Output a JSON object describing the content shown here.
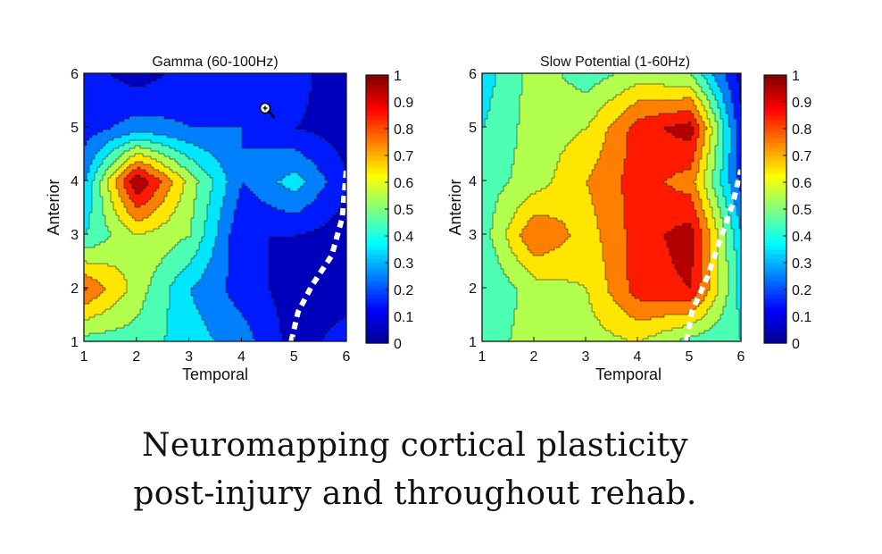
{
  "chart_data": [
    {
      "type": "heatmap",
      "title": "Gamma (60-100Hz)",
      "xlabel": "Temporal",
      "ylabel": "Anterior",
      "x": [
        1,
        2,
        3,
        4,
        5,
        6
      ],
      "y": [
        1,
        2,
        3,
        4,
        5,
        6
      ],
      "xlim": [
        1,
        6
      ],
      "ylim": [
        1,
        6
      ],
      "x_ticks": [
        "1",
        "2",
        "3",
        "4",
        "5",
        "6"
      ],
      "y_ticks": [
        "1",
        "2",
        "3",
        "4",
        "5",
        "6"
      ],
      "z": [
        [
          0.45,
          0.45,
          0.35,
          0.25,
          0.05,
          0.15
        ],
        [
          0.8,
          0.55,
          0.3,
          0.15,
          0.05,
          0.05
        ],
        [
          0.4,
          0.6,
          0.5,
          0.1,
          0.1,
          0.05
        ],
        [
          0.3,
          1.0,
          0.55,
          0.2,
          0.35,
          0.1
        ],
        [
          0.15,
          0.25,
          0.2,
          0.2,
          0.1,
          0.05
        ],
        [
          0.15,
          0.05,
          0.15,
          0.2,
          0.15,
          0.0
        ]
      ],
      "contour_levels": [
        0.1,
        0.2,
        0.3,
        0.4,
        0.5,
        0.6,
        0.7,
        0.8,
        0.9
      ],
      "boundary_line": [
        [
          4.95,
          1.0
        ],
        [
          5.08,
          1.55
        ],
        [
          5.35,
          2.05
        ],
        [
          5.72,
          2.6
        ],
        [
          5.92,
          3.3
        ],
        [
          6.0,
          4.2
        ]
      ],
      "colorbar": {
        "min": 0,
        "max": 1,
        "ticks": [
          "0",
          "0.1",
          "0.2",
          "0.3",
          "0.4",
          "0.5",
          "0.6",
          "0.7",
          "0.8",
          "0.9",
          "1"
        ]
      }
    },
    {
      "type": "heatmap",
      "title": "Slow Potential (1-60Hz)",
      "xlabel": "Temporal",
      "ylabel": "Anterior",
      "x": [
        1,
        2,
        3,
        4,
        5,
        6
      ],
      "y": [
        1,
        2,
        3,
        4,
        5,
        6
      ],
      "xlim": [
        1,
        6
      ],
      "ylim": [
        1,
        6
      ],
      "x_ticks": [
        "1",
        "2",
        "3",
        "4",
        "5",
        "6"
      ],
      "y_ticks": [
        "1",
        "2",
        "3",
        "4",
        "5",
        "6"
      ],
      "z": [
        [
          0.45,
          0.55,
          0.55,
          0.6,
          0.45,
          0.4
        ],
        [
          0.4,
          0.55,
          0.6,
          0.85,
          0.9,
          0.35
        ],
        [
          0.45,
          0.8,
          0.65,
          0.85,
          0.95,
          0.3
        ],
        [
          0.45,
          0.55,
          0.7,
          0.85,
          0.75,
          0.15
        ],
        [
          0.4,
          0.55,
          0.6,
          0.85,
          0.95,
          0.1
        ],
        [
          0.35,
          0.55,
          0.45,
          0.55,
          0.5,
          0.05
        ]
      ],
      "contour_levels": [
        0.1,
        0.2,
        0.3,
        0.4,
        0.5,
        0.6,
        0.7,
        0.8,
        0.9
      ],
      "boundary_line": [
        [
          4.95,
          1.0
        ],
        [
          5.05,
          1.55
        ],
        [
          5.35,
          2.2
        ],
        [
          5.6,
          2.9
        ],
        [
          5.85,
          3.6
        ],
        [
          6.0,
          4.2
        ]
      ],
      "colorbar": {
        "min": 0,
        "max": 1,
        "ticks": [
          "0",
          "0.1",
          "0.2",
          "0.3",
          "0.4",
          "0.5",
          "0.6",
          "0.7",
          "0.8",
          "0.9",
          "1"
        ]
      }
    }
  ],
  "caption": {
    "line1": "Neuromapping cortical plasticity",
    "line2": "post-injury and throughout rehab."
  },
  "colors": {
    "jet": [
      "#00008f",
      "#0000ff",
      "#0080ff",
      "#00ffff",
      "#80ff80",
      "#ffff00",
      "#ff8000",
      "#ff0000",
      "#800000"
    ]
  },
  "icons": {
    "cursor": "zoom-in-icon"
  }
}
